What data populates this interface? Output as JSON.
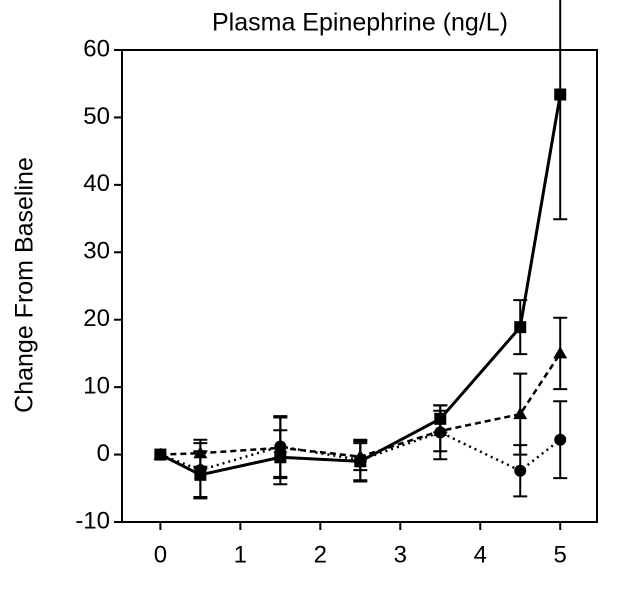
{
  "chart_data": {
    "type": "line",
    "title": "Plasma Epinephrine (ng/L)",
    "y_label": "Change From Baseline",
    "x": [
      0,
      0.5,
      1.5,
      2.5,
      3.5,
      4.5,
      5
    ],
    "xlim": [
      -0.48,
      5.46
    ],
    "xticks": [
      0,
      1,
      2,
      3,
      4,
      5
    ],
    "ylim": [
      -10,
      60
    ],
    "yticks": [
      -10,
      0,
      10,
      20,
      30,
      40,
      50,
      60
    ],
    "series": [
      {
        "color": "#000000",
        "marker": "square",
        "linestyle": "solid",
        "values": [
          0,
          -3,
          -0.4,
          -1,
          5.3,
          18.9,
          53.4
        ],
        "errors": [
          0,
          3.5,
          4,
          3,
          2,
          4,
          18.5
        ]
      },
      {
        "color": "#000000",
        "marker": "triangle",
        "linestyle": "dashed",
        "values": [
          0,
          0.2,
          1,
          -0.3,
          3.5,
          6,
          15
        ],
        "errors": [
          0,
          2,
          4.5,
          2,
          3,
          6,
          5.3
        ]
      },
      {
        "color": "#000000",
        "marker": "circle",
        "linestyle": "dotted",
        "values": [
          0,
          -2.3,
          1.2,
          -0.8,
          3.3,
          -2.4,
          2.2
        ],
        "errors": [
          0,
          4,
          4.5,
          3,
          4,
          3.8,
          5.7
        ]
      }
    ]
  }
}
